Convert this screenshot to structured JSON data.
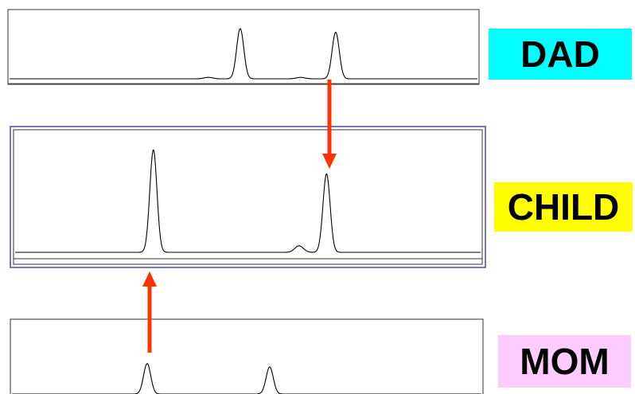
{
  "chart_data": [
    {
      "type": "line",
      "name": "dad",
      "title": "",
      "xlim": [
        0,
        1000
      ],
      "ylim": [
        0,
        100
      ],
      "peaks": [
        {
          "x": 493,
          "height": 70
        },
        {
          "x": 697,
          "height": 65
        }
      ],
      "minor_bumps": [
        {
          "x": 425,
          "height": 2
        },
        {
          "x": 622,
          "height": 2
        }
      ]
    },
    {
      "type": "line",
      "name": "child",
      "title": "",
      "xlim": [
        0,
        1000
      ],
      "ylim": [
        0,
        100
      ],
      "peaks": [
        {
          "x": 297,
          "height": 94
        },
        {
          "x": 669,
          "height": 72
        }
      ],
      "minor_bumps": [
        {
          "x": 610,
          "height": 6
        }
      ]
    },
    {
      "type": "line",
      "name": "mom",
      "title": "",
      "xlim": [
        0,
        1000
      ],
      "ylim": [
        0,
        100
      ],
      "peaks": [
        {
          "x": 288,
          "height": 45
        },
        {
          "x": 549,
          "height": 40
        }
      ],
      "minor_bumps": []
    }
  ],
  "labels": {
    "dad": "DAD",
    "child": "CHILD",
    "mom": "MOM"
  },
  "colors": {
    "dad_label_bg": "#00ffff",
    "child_label_bg": "#ffff00",
    "mom_label_bg": "#ffccff",
    "arrow": "#ff3300",
    "trace": "#000000",
    "child_frame": "#4a4aa6"
  },
  "arrows": [
    {
      "from": "dad",
      "to": "child",
      "peak_index": 1,
      "direction": "down"
    },
    {
      "from": "mom",
      "to": "child",
      "peak_index": 0,
      "direction": "up"
    }
  ]
}
